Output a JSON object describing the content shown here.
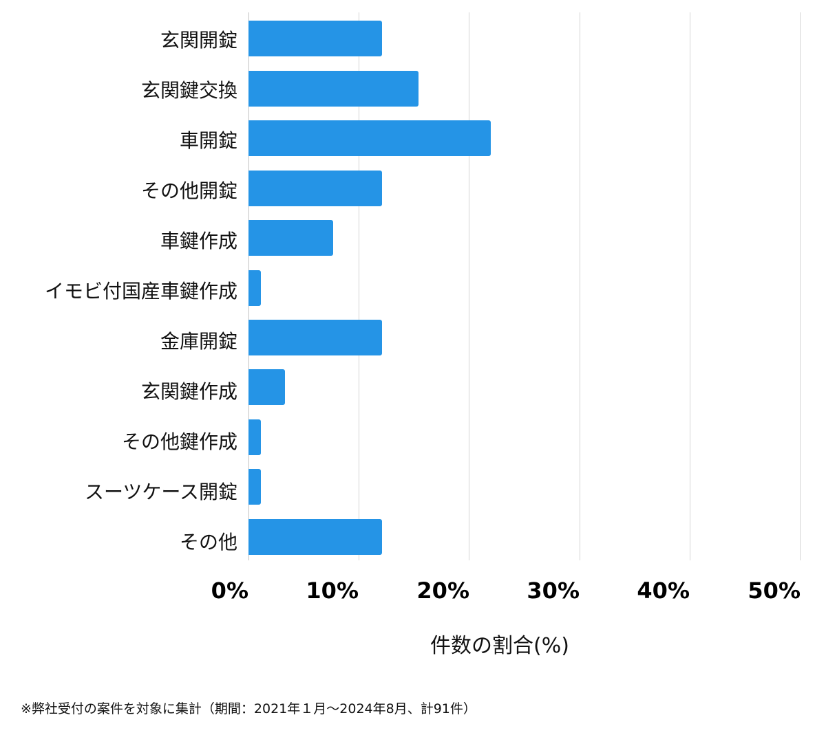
{
  "chart_data": {
    "type": "bar",
    "orientation": "horizontal",
    "title": "",
    "xlabel": "件数の割合(%)",
    "ylabel": "",
    "xlim": [
      0,
      50
    ],
    "grid": true,
    "legend": null,
    "bar_color": "#2594e6",
    "categories": [
      "玄関開錠",
      "玄関鍵交換",
      "車開錠",
      "その他開錠",
      "車鍵作成",
      "イモビ付国産車鍵作成",
      "金庫開錠",
      "玄関鍵作成",
      "その他鍵作成",
      "スーツケース開錠",
      "その他"
    ],
    "values": [
      12.1,
      15.4,
      22.0,
      12.1,
      7.7,
      1.1,
      12.1,
      3.3,
      1.1,
      1.1,
      12.1
    ],
    "counts_estimated": [
      11,
      14,
      20,
      11,
      7,
      1,
      11,
      3,
      1,
      1,
      11
    ],
    "x_ticks": [
      "0%",
      "10%",
      "20%",
      "30%",
      "40%",
      "50%"
    ],
    "footnote": "※弊社受付の案件を対象に集計（期間：2021年１月～2024年8月、計91件）"
  },
  "labels": {
    "c0": "玄関開錠",
    "c1": "玄関鍵交換",
    "c2": "車開錠",
    "c3": "その他開錠",
    "c4": "車鍵作成",
    "c5": "イモビ付国産車鍵作成",
    "c6": "金庫開錠",
    "c7": "玄関鍵作成",
    "c8": "その他鍵作成",
    "c9": "スーツケース開錠",
    "c10": "その他"
  },
  "ticks": {
    "t0": "0%",
    "t1": "10%",
    "t2": "20%",
    "t3": "30%",
    "t4": "40%",
    "t5": "50%"
  },
  "axis": {
    "xlabel": "件数の割合(%)"
  },
  "footnote": "※弊社受付の案件を対象に集計（期間：2021年１月～2024年8月、計91件）"
}
